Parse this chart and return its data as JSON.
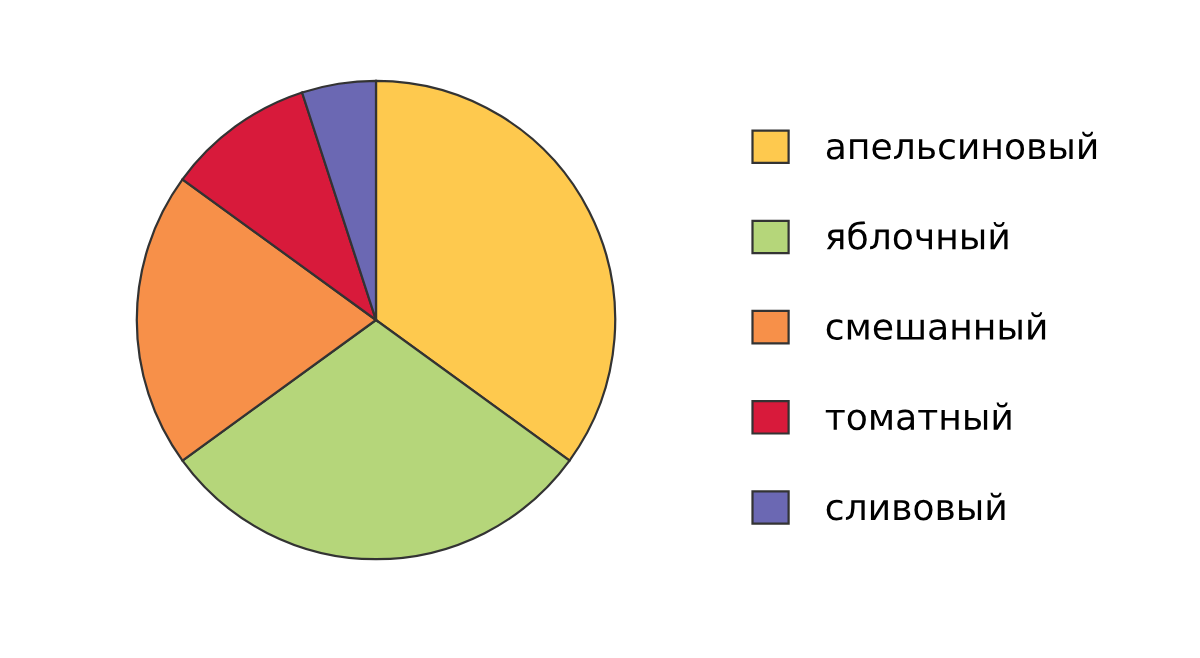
{
  "chart_data": {
    "type": "pie",
    "categories": [
      "апельсиновый",
      "яблочный",
      "смешанный",
      "томатный",
      "сливовый"
    ],
    "values": [
      35,
      30,
      20,
      10,
      5
    ],
    "colors": [
      "#fec94e",
      "#b5d67a",
      "#f79049",
      "#d81a3b",
      "#6b68b3"
    ],
    "legend": "right"
  }
}
